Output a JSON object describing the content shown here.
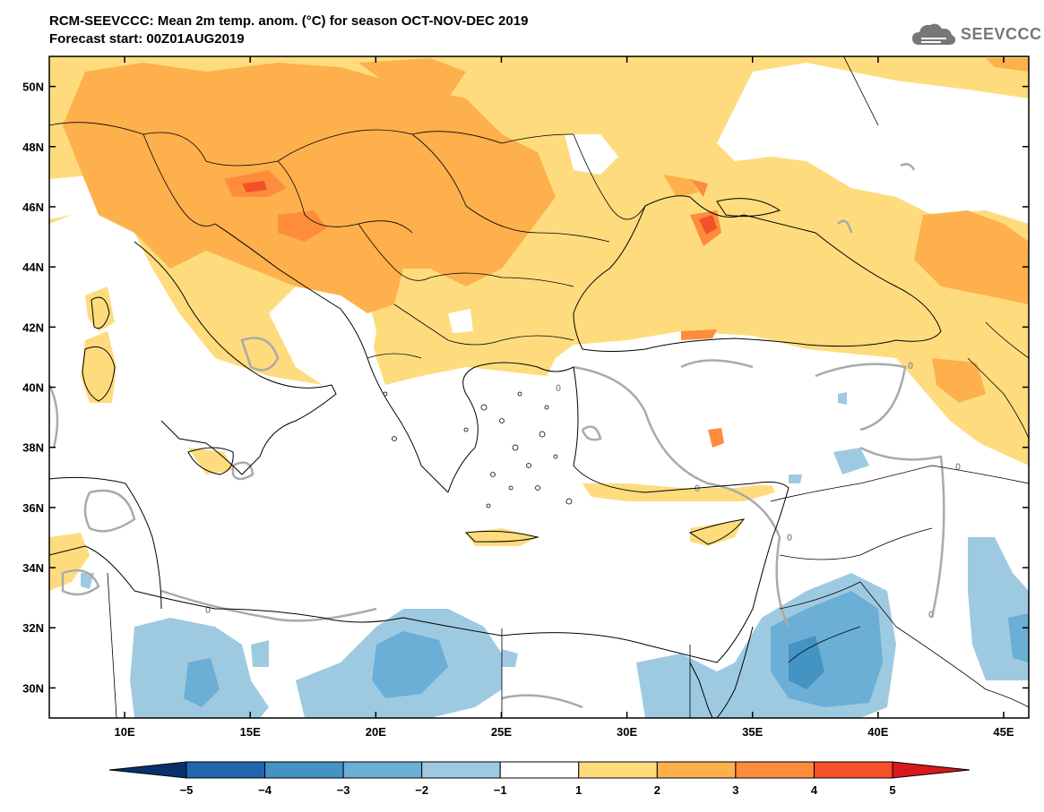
{
  "header": {
    "title": "RCM-SEEVCCC: Mean 2m temp. anom. (°C) for season OCT-NOV-DEC 2019",
    "subtitle": "Forecast start: 00Z01AUG2019"
  },
  "logo": {
    "text": "SEEVCCC",
    "icon": "cloud-icon"
  },
  "map": {
    "lat_labels": [
      "50N",
      "48N",
      "46N",
      "44N",
      "42N",
      "40N",
      "38N",
      "36N",
      "34N",
      "32N",
      "30N"
    ],
    "lon_labels": [
      "10E",
      "15E",
      "20E",
      "25E",
      "30E",
      "35E",
      "40E",
      "45E"
    ],
    "lat_range": [
      29,
      51
    ],
    "lon_range": [
      7,
      46
    ],
    "contour_labels": [
      "0",
      "0",
      "0",
      "0",
      "0",
      "0",
      "0"
    ]
  },
  "colorbar": {
    "labels": [
      "−5",
      "−4",
      "−3",
      "−2",
      "−1",
      "1",
      "2",
      "3",
      "4",
      "5"
    ],
    "colors": [
      "#08306b",
      "#2166ac",
      "#4393c3",
      "#6baed6",
      "#9ecae1",
      "#ffffff",
      "#fedc7e",
      "#fdb04c",
      "#fd8d3c",
      "#f4502a",
      "#d7191c"
    ]
  },
  "colors": {
    "anom_1_2": "#fedc7e",
    "anom_2_3": "#fdb04c",
    "anom_3_4": "#fd8d3c",
    "anom_4_5": "#f4502a",
    "anom_m1_m2": "#9ecae1",
    "anom_m2_m3": "#6baed6",
    "anom_m3_m4": "#4393c3",
    "contour": "#aaaaaa"
  }
}
